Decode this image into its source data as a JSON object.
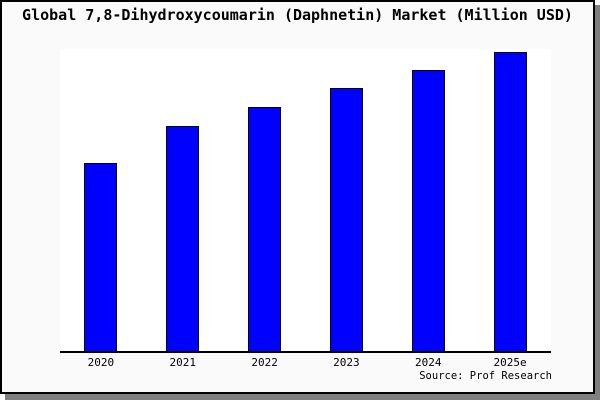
{
  "header": {
    "title": "Global 7,8-Dihydroxycoumarin (Daphnetin) Market (Million USD)"
  },
  "footer": {
    "source": "Source: Prof Research"
  },
  "colors": {
    "bar_fill": "#0000ff",
    "bar_edge": "#000000",
    "panel_background": "#fafafa",
    "plot_background": "#ffffff",
    "axis_line": "#000000",
    "frame_border": "#000000",
    "shadow": "#808080",
    "text": "#000000"
  },
  "chart_data": {
    "type": "bar",
    "title": "Global 7,8-Dihydroxycoumarin (Daphnetin) Market (Million USD)",
    "categories": [
      "2020",
      "2021",
      "2022",
      "2023",
      "2024",
      "2025e"
    ],
    "values": [
      62.5,
      74.8,
      81.1,
      87.4,
      93.4,
      99.3
    ],
    "units": "relative bar height, % of plot height (no y-axis tick labels shown)",
    "xlabel": "",
    "ylabel": "",
    "ylim": [
      0,
      100
    ],
    "grid": false,
    "legend": false,
    "y_axis_ticks_visible": false,
    "bar_color": "#0000ff",
    "bar_edge_color": "#000000",
    "source": "Source: Prof Research"
  }
}
